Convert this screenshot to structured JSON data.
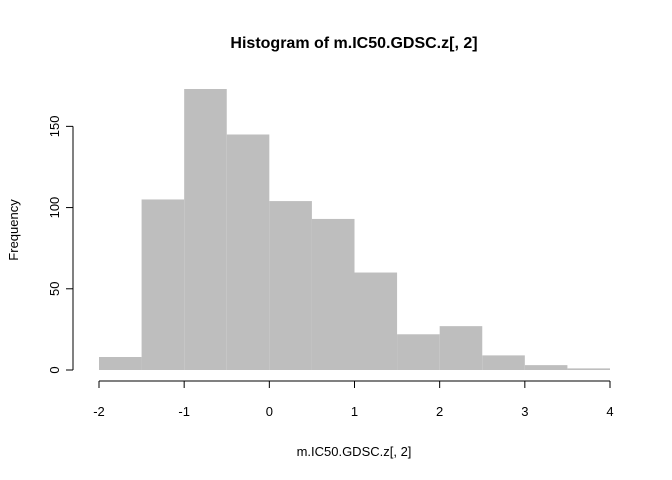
{
  "chart_data": {
    "type": "bar",
    "subtype": "histogram",
    "title": "Histogram of m.IC50.GDSC.z[, 2]",
    "xlabel": "m.IC50.GDSC.z[, 2]",
    "ylabel": "Frequency",
    "bar_color": "#bebebe",
    "bin_edges": [
      -2,
      -1.5,
      -1,
      -0.5,
      0,
      0.5,
      1,
      1.5,
      2,
      2.5,
      3,
      3.5,
      4
    ],
    "values": [
      8,
      105,
      173,
      145,
      104,
      93,
      60,
      22,
      27,
      9,
      3,
      1
    ],
    "xlim": [
      -2,
      4
    ],
    "ylim": [
      0,
      173
    ],
    "x_ticks": [
      -2,
      -1,
      0,
      1,
      2,
      3,
      4
    ],
    "x_tick_labels": [
      "-2",
      "-1",
      "0",
      "1",
      "2",
      "3",
      "4"
    ],
    "y_ticks": [
      0,
      50,
      100,
      150
    ],
    "y_tick_labels": [
      "0",
      "50",
      "100",
      "150"
    ],
    "grid": false,
    "legend": "none"
  }
}
